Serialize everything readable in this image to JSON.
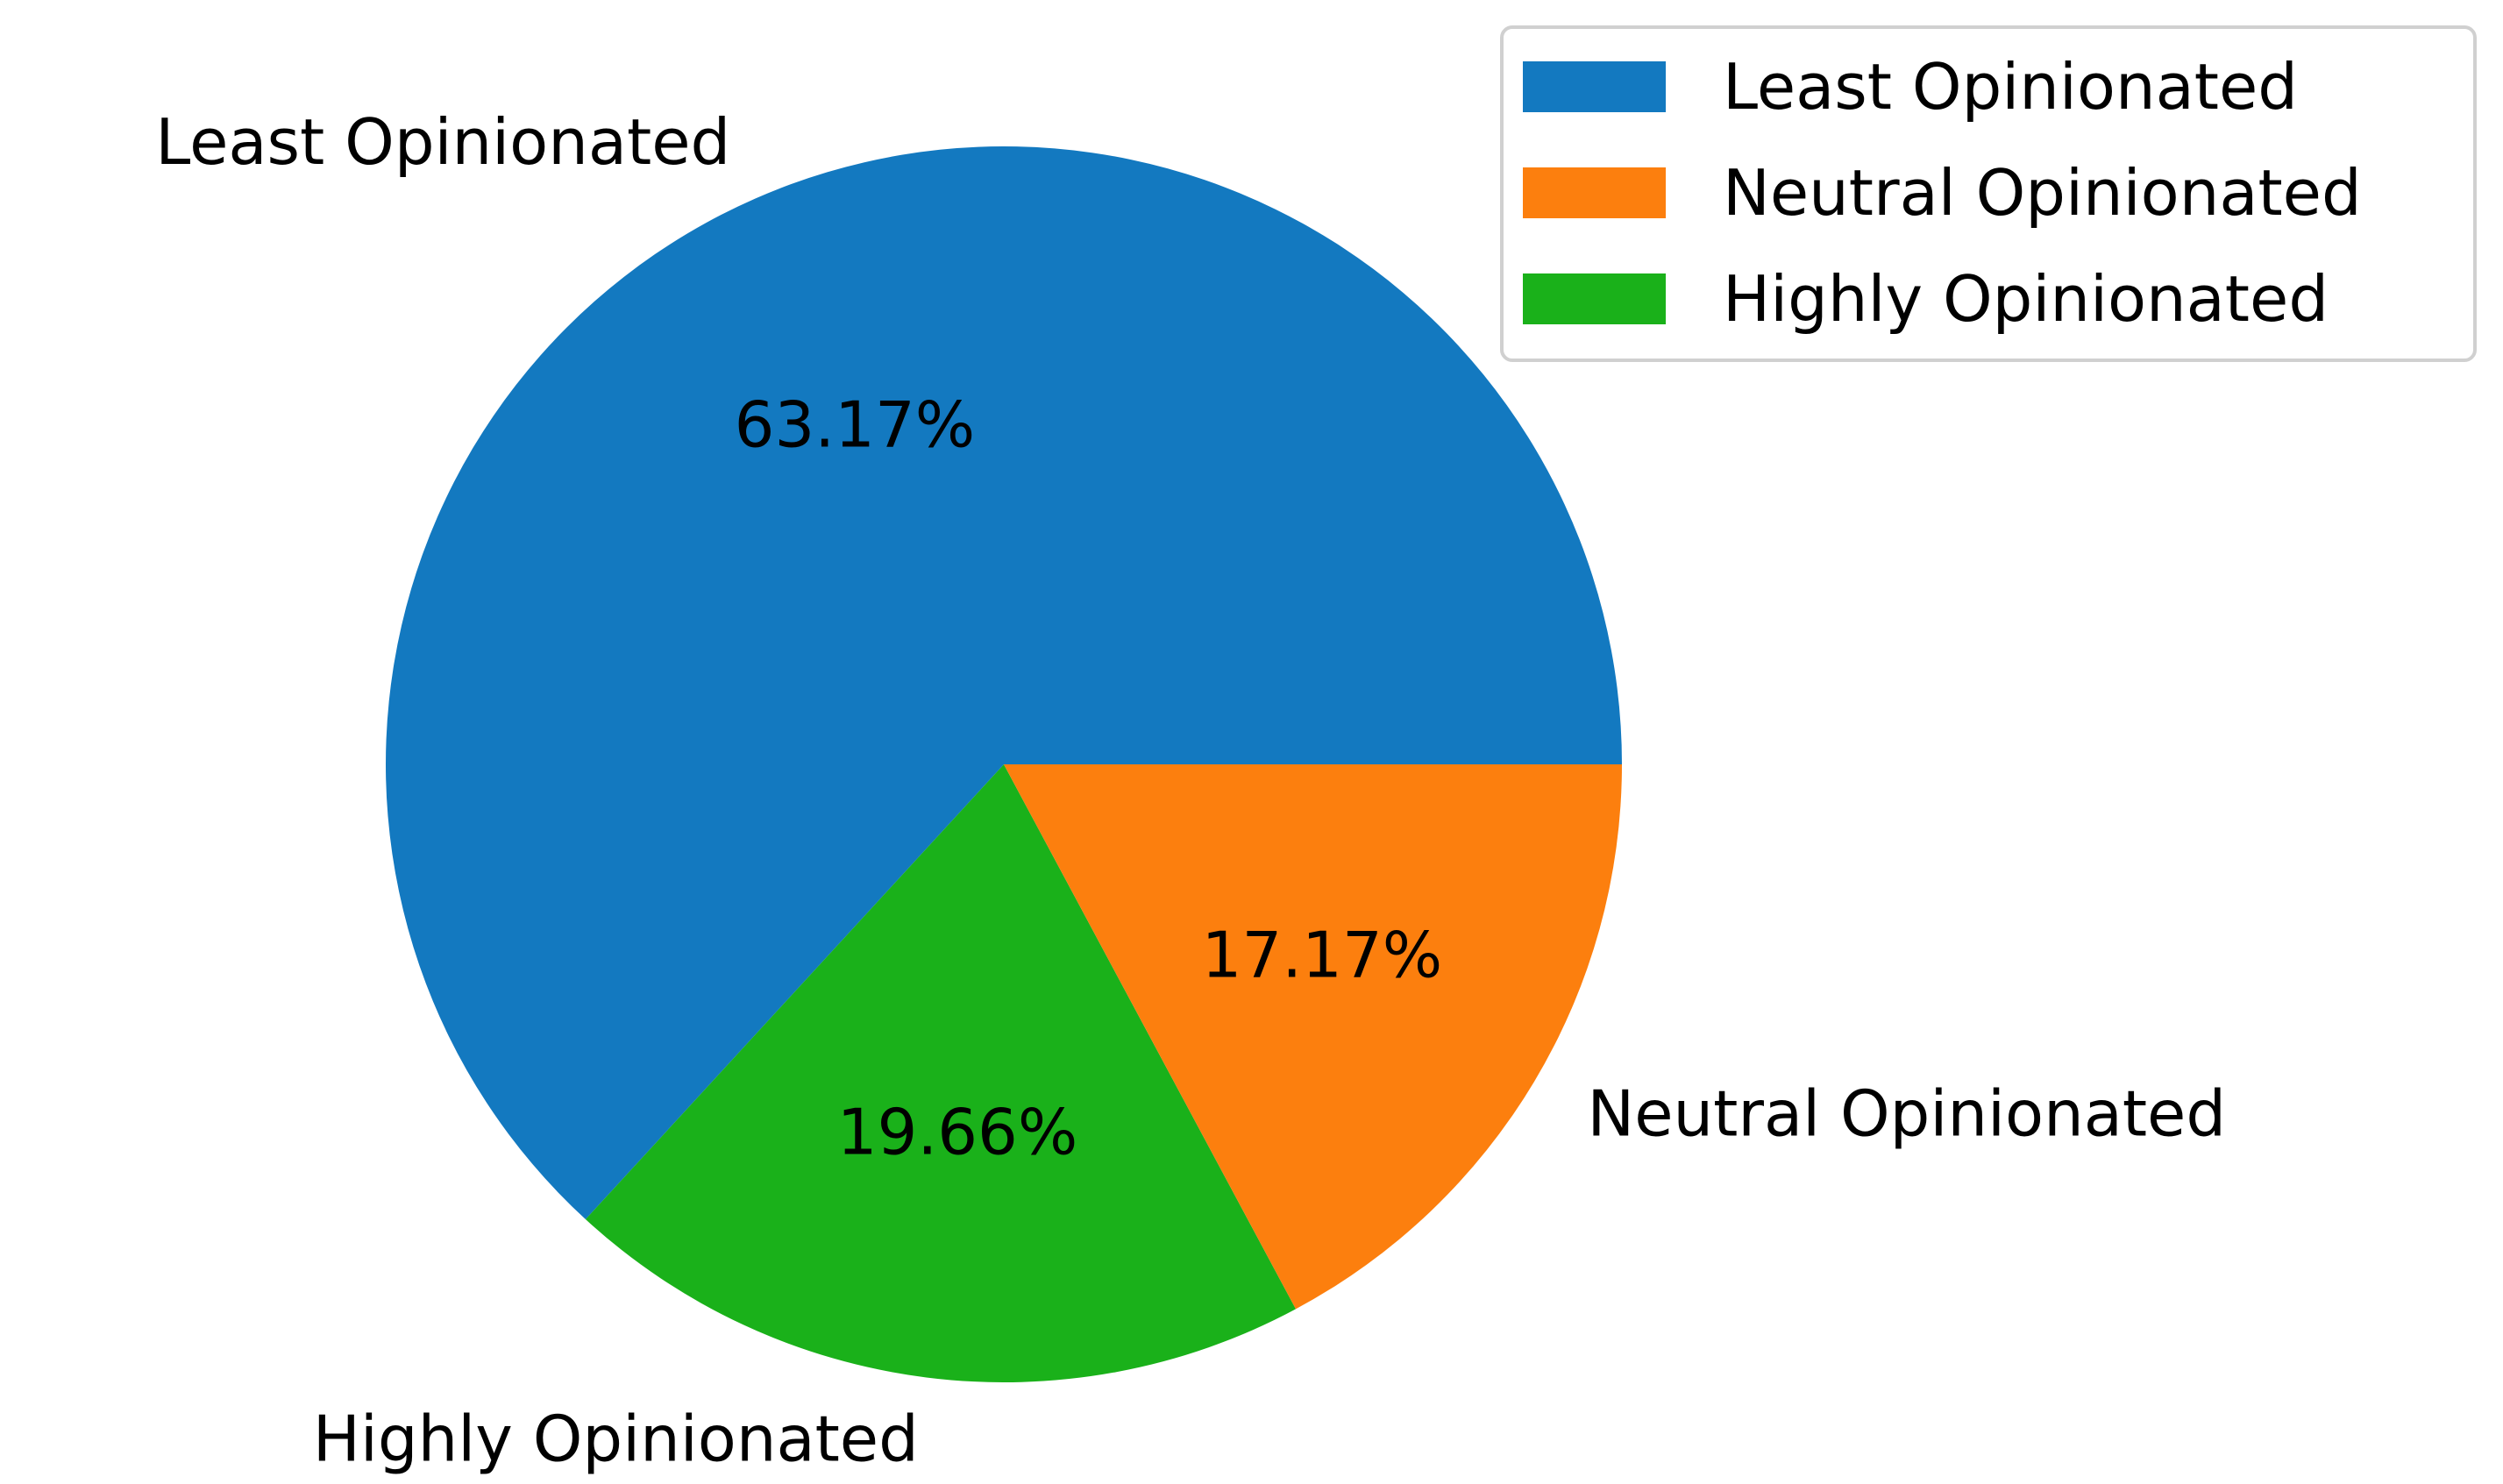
{
  "chart_data": {
    "type": "pie",
    "slices": [
      {
        "label": "Least Opinionated",
        "value": 63.17,
        "pct_label": "63.17%",
        "color": "#1379C0"
      },
      {
        "label": "Highly Opinionated",
        "value": 19.66,
        "pct_label": "19.66%",
        "color": "#1AB11A"
      },
      {
        "label": "Neutral Opinionated",
        "value": 17.17,
        "pct_label": "17.17%",
        "color": "#FC7F0E"
      }
    ],
    "legend": {
      "placement": "top-right",
      "entries": [
        {
          "label": "Least Opinionated",
          "color": "#1379C0"
        },
        {
          "label": "Neutral Opinionated",
          "color": "#FC7F0E"
        },
        {
          "label": "Highly Opinionated",
          "color": "#1AB11A"
        }
      ]
    }
  }
}
